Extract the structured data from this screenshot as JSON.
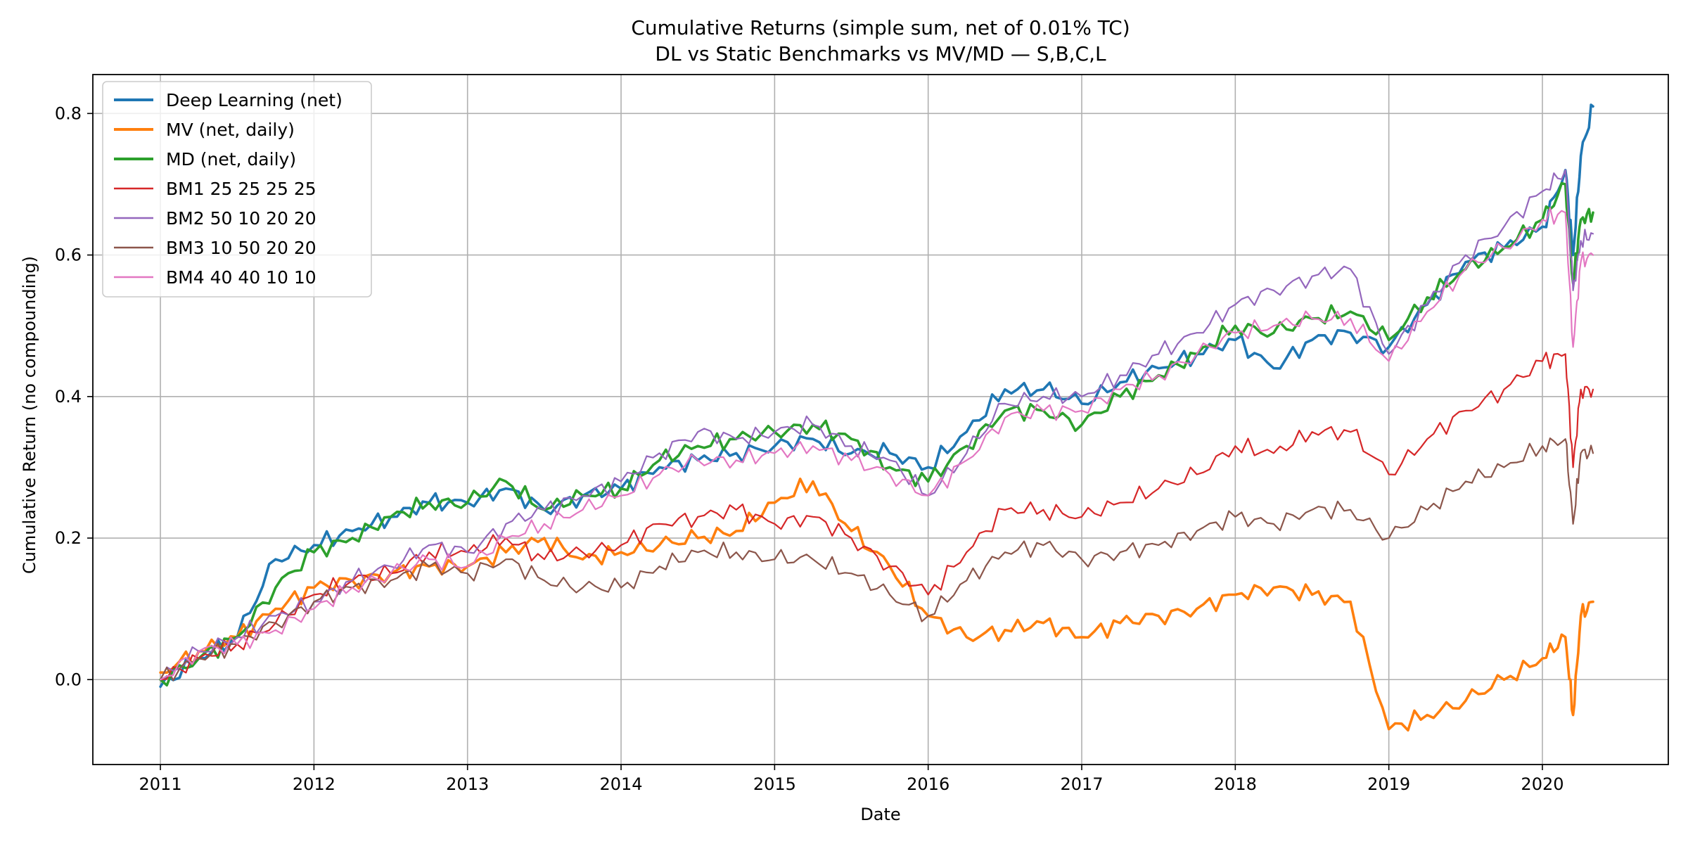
{
  "chart_data": {
    "type": "line",
    "title": "Cumulative Returns (simple sum, net of 0.01% TC)",
    "subtitle": "DL vs Static Benchmarks vs MV/MD — S,B,C,L",
    "xlabel": "Date",
    "ylabel": "Cumulative Return (no compounding)",
    "x_ticks": [
      "2011",
      "2012",
      "2013",
      "2014",
      "2015",
      "2016",
      "2017",
      "2018",
      "2019",
      "2020"
    ],
    "y_ticks": [
      "0.0",
      "0.2",
      "0.4",
      "0.6",
      "0.8"
    ],
    "xlim": [
      2010.56,
      2020.82
    ],
    "ylim": [
      -0.12,
      0.855
    ],
    "grid": true,
    "legend_position": "top-left",
    "x": [
      2011.0,
      2011.25,
      2011.5,
      2011.75,
      2012.0,
      2012.25,
      2012.5,
      2012.75,
      2013.0,
      2013.25,
      2013.5,
      2013.75,
      2014.0,
      2014.25,
      2014.5,
      2014.75,
      2015.0,
      2015.25,
      2015.5,
      2015.75,
      2016.0,
      2016.25,
      2016.5,
      2016.75,
      2017.0,
      2017.25,
      2017.5,
      2017.75,
      2018.0,
      2018.25,
      2018.5,
      2018.75,
      2019.0,
      2019.25,
      2019.5,
      2019.75,
      2020.0,
      2020.15,
      2020.2,
      2020.25,
      2020.33
    ],
    "series": [
      {
        "name": "Deep Learning (net)",
        "color": "#1f77b4",
        "width": 3.6,
        "values": [
          -0.01,
          0.03,
          0.06,
          0.17,
          0.19,
          0.21,
          0.23,
          0.25,
          0.25,
          0.27,
          0.24,
          0.26,
          0.27,
          0.3,
          0.31,
          0.32,
          0.33,
          0.34,
          0.32,
          0.32,
          0.3,
          0.35,
          0.41,
          0.41,
          0.39,
          0.42,
          0.44,
          0.46,
          0.48,
          0.44,
          0.48,
          0.49,
          0.47,
          0.53,
          0.59,
          0.61,
          0.64,
          0.72,
          0.6,
          0.74,
          0.81
        ]
      },
      {
        "name": "MV (net, daily)",
        "color": "#ff7f0e",
        "width": 3.6,
        "values": [
          0.01,
          0.04,
          0.06,
          0.1,
          0.13,
          0.14,
          0.15,
          0.16,
          0.16,
          0.18,
          0.2,
          0.17,
          0.18,
          0.19,
          0.2,
          0.21,
          0.25,
          0.28,
          0.21,
          0.16,
          0.09,
          0.06,
          0.07,
          0.08,
          0.06,
          0.08,
          0.09,
          0.1,
          0.12,
          0.13,
          0.12,
          0.11,
          -0.07,
          -0.05,
          -0.03,
          0.0,
          0.03,
          0.06,
          -0.05,
          0.09,
          0.11
        ]
      },
      {
        "name": "MD (net, daily)",
        "color": "#2ca02c",
        "width": 3.6,
        "values": [
          0.0,
          0.03,
          0.06,
          0.13,
          0.18,
          0.2,
          0.23,
          0.25,
          0.25,
          0.28,
          0.24,
          0.26,
          0.27,
          0.31,
          0.33,
          0.34,
          0.35,
          0.36,
          0.34,
          0.3,
          0.28,
          0.33,
          0.38,
          0.38,
          0.36,
          0.4,
          0.43,
          0.46,
          0.5,
          0.49,
          0.51,
          0.52,
          0.48,
          0.54,
          0.58,
          0.61,
          0.65,
          0.7,
          0.56,
          0.65,
          0.66
        ]
      },
      {
        "name": "BM1 25 25 25 25",
        "color": "#d62728",
        "width": 2.2,
        "values": [
          0.0,
          0.03,
          0.05,
          0.08,
          0.12,
          0.14,
          0.15,
          0.18,
          0.18,
          0.2,
          0.17,
          0.18,
          0.19,
          0.22,
          0.23,
          0.24,
          0.22,
          0.23,
          0.2,
          0.16,
          0.12,
          0.18,
          0.24,
          0.24,
          0.23,
          0.25,
          0.27,
          0.29,
          0.33,
          0.32,
          0.35,
          0.35,
          0.29,
          0.34,
          0.38,
          0.41,
          0.45,
          0.46,
          0.3,
          0.41,
          0.41
        ]
      },
      {
        "name": "BM2 50 10 20 20",
        "color": "#9467bd",
        "width": 2.2,
        "values": [
          0.0,
          0.04,
          0.06,
          0.09,
          0.11,
          0.14,
          0.16,
          0.19,
          0.18,
          0.22,
          0.24,
          0.26,
          0.28,
          0.32,
          0.35,
          0.34,
          0.35,
          0.36,
          0.33,
          0.31,
          0.26,
          0.32,
          0.39,
          0.4,
          0.4,
          0.43,
          0.46,
          0.49,
          0.53,
          0.55,
          0.57,
          0.58,
          0.46,
          0.53,
          0.6,
          0.64,
          0.69,
          0.72,
          0.55,
          0.62,
          0.63
        ]
      },
      {
        "name": "BM3 10 50 20 20",
        "color": "#8c564b",
        "width": 2.2,
        "values": [
          0.0,
          0.03,
          0.05,
          0.08,
          0.11,
          0.13,
          0.14,
          0.16,
          0.15,
          0.17,
          0.14,
          0.13,
          0.13,
          0.16,
          0.18,
          0.18,
          0.17,
          0.17,
          0.15,
          0.12,
          0.09,
          0.14,
          0.18,
          0.19,
          0.17,
          0.18,
          0.19,
          0.21,
          0.23,
          0.22,
          0.24,
          0.24,
          0.2,
          0.24,
          0.28,
          0.3,
          0.33,
          0.34,
          0.22,
          0.32,
          0.32
        ]
      },
      {
        "name": "BM4 40 40 10 10",
        "color": "#e377c2",
        "width": 2.2,
        "values": [
          0.0,
          0.04,
          0.05,
          0.07,
          0.1,
          0.13,
          0.15,
          0.17,
          0.16,
          0.2,
          0.22,
          0.24,
          0.26,
          0.29,
          0.31,
          0.31,
          0.32,
          0.33,
          0.31,
          0.29,
          0.26,
          0.31,
          0.37,
          0.38,
          0.38,
          0.41,
          0.43,
          0.46,
          0.49,
          0.5,
          0.51,
          0.51,
          0.45,
          0.52,
          0.58,
          0.61,
          0.65,
          0.66,
          0.47,
          0.59,
          0.6
        ]
      }
    ]
  }
}
